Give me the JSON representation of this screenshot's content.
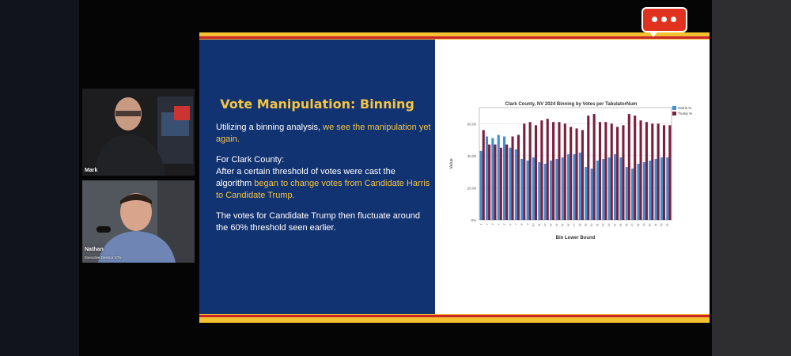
{
  "participants": [
    {
      "name": "Mark",
      "subtitle": ""
    },
    {
      "name": "Nathan",
      "subtitle": "Executive Director ETA"
    }
  ],
  "slide": {
    "title": "Vote Manipulation: Binning",
    "para1_a": "Utilizing a binning analysis, ",
    "para1_b": "we see the manipulation yet again.",
    "para2_a": "For Clark County:",
    "para2_b": "After a certain threshold of votes were cast the algorithm ",
    "para2_c": "began to change votes from Candidate Harris to Candidate Trump.",
    "para3_a": "The votes for Candidate Trump then fluctuate around the 60% threshold seen earlier."
  },
  "chart_data": {
    "type": "bar",
    "title": "Clark County, NV 2024 Binning by Votes per TabulatorNum",
    "xlabel": "Bin Lower Bound",
    "ylabel": "Value",
    "ylim": [
      0,
      70
    ],
    "yticks": [
      "0%",
      "20.00",
      "40.00",
      "60.00"
    ],
    "categories": [
      "1",
      "2",
      "3",
      "4",
      "5",
      "6",
      "7",
      "8",
      "9",
      "10",
      "11",
      "12",
      "13",
      "14",
      "15",
      "16",
      "17",
      "18",
      "19",
      "20",
      "21",
      "22",
      "23",
      "24",
      "25",
      "26",
      "27",
      "28",
      "29",
      "30",
      "31",
      "32",
      "33"
    ],
    "series": [
      {
        "name": "Harris %",
        "color": "#3d8fd1",
        "values": [
          43,
          52,
          51,
          53,
          52,
          45,
          44,
          38,
          37,
          39,
          36,
          35,
          37,
          38,
          39,
          41,
          41,
          42,
          33,
          32,
          37,
          38,
          39,
          41,
          39,
          33,
          32,
          35,
          36,
          37,
          38,
          39,
          39
        ]
      },
      {
        "name": "Trump %",
        "color": "#7d1e3c",
        "values": [
          56,
          47,
          47,
          45,
          47,
          52,
          53,
          60,
          61,
          59,
          62,
          63,
          61,
          61,
          60,
          58,
          57,
          56,
          65,
          66,
          61,
          61,
          60,
          58,
          59,
          66,
          65,
          62,
          61,
          60,
          60,
          59,
          59
        ]
      }
    ],
    "legend_position": "top-right",
    "grid": true
  },
  "chat_icon": "chat-bubble-icon"
}
